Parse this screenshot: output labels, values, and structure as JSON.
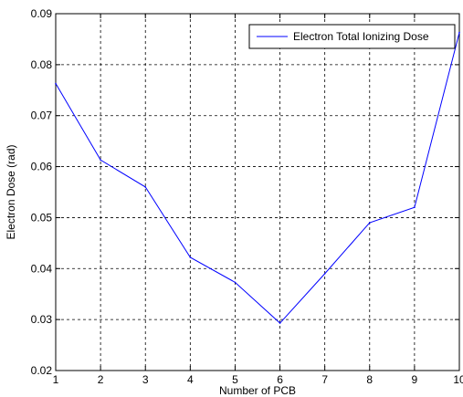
{
  "chart_data": {
    "type": "line",
    "title": "",
    "xlabel": "Number of PCB",
    "ylabel": "Electron Dose (rad)",
    "xlim": [
      1,
      10
    ],
    "ylim": [
      0.02,
      0.09
    ],
    "x_ticks": [
      "1",
      "2",
      "3",
      "4",
      "5",
      "6",
      "7",
      "8",
      "9",
      "10"
    ],
    "y_ticks": [
      "0.02",
      "0.03",
      "0.04",
      "0.05",
      "0.06",
      "0.07",
      "0.08",
      "0.09"
    ],
    "grid": true,
    "legend_position": "top-right",
    "series": [
      {
        "name": "Electron Total Ionizing Dose",
        "color": "#0000ff",
        "x": [
          1,
          2,
          3,
          4,
          5,
          6,
          7,
          8,
          9,
          10
        ],
        "y": [
          0.0763,
          0.0613,
          0.056,
          0.0422,
          0.0373,
          0.0293,
          0.039,
          0.049,
          0.052,
          0.0863
        ]
      }
    ]
  }
}
